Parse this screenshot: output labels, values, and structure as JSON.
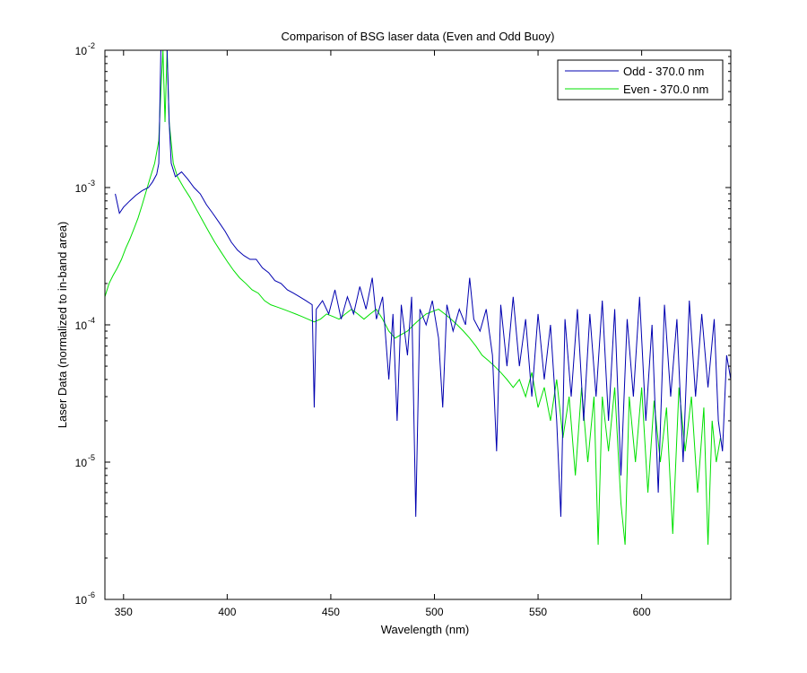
{
  "chart_data": {
    "type": "line",
    "title": "Comparison of BSG laser data (Even and Odd Buoy)",
    "xlabel": "Wavelength (nm)",
    "ylabel": "Laser Data (normalized to in-band area)",
    "xlim": [
      341,
      643
    ],
    "ylim": [
      1e-06,
      0.01
    ],
    "yscale": "log",
    "grid": false,
    "legend_position": "top-right",
    "x_ticks": [
      350,
      400,
      450,
      500,
      550,
      600
    ],
    "x_tick_labels": [
      "350",
      "400",
      "450",
      "500",
      "550",
      "600"
    ],
    "y_ticks": [
      {
        "value": 0.01,
        "base": "10",
        "exp": "-2"
      },
      {
        "value": 0.001,
        "base": "10",
        "exp": "-3"
      },
      {
        "value": 0.0001,
        "base": "10",
        "exp": "-4"
      },
      {
        "value": 1e-05,
        "base": "10",
        "exp": "-5"
      },
      {
        "value": 1e-06,
        "base": "10",
        "exp": "-6"
      }
    ],
    "series": [
      {
        "name": "Odd - 370.0 nm",
        "color": "#0000b0",
        "points": [
          [
            346,
            0.0009
          ],
          [
            348,
            0.00065
          ],
          [
            350,
            0.00072
          ],
          [
            353,
            0.0008
          ],
          [
            356,
            0.00088
          ],
          [
            359,
            0.00095
          ],
          [
            362,
            0.001
          ],
          [
            364,
            0.0011
          ],
          [
            366,
            0.00125
          ],
          [
            367,
            0.0015
          ],
          [
            368,
            0.01
          ],
          [
            370,
            0.01
          ],
          [
            371,
            0.01
          ],
          [
            372,
            0.003
          ],
          [
            373,
            0.0015
          ],
          [
            375,
            0.0012
          ],
          [
            378,
            0.0013
          ],
          [
            381,
            0.00115
          ],
          [
            384,
            0.001
          ],
          [
            387,
            0.0009
          ],
          [
            390,
            0.00075
          ],
          [
            393,
            0.00065
          ],
          [
            396,
            0.00056
          ],
          [
            399,
            0.00048
          ],
          [
            402,
            0.0004
          ],
          [
            405,
            0.00035
          ],
          [
            408,
            0.00032
          ],
          [
            411,
            0.0003
          ],
          [
            414,
            0.0003
          ],
          [
            417,
            0.00026
          ],
          [
            420,
            0.00024
          ],
          [
            423,
            0.00021
          ],
          [
            426,
            0.0002
          ],
          [
            429,
            0.00018
          ],
          [
            432,
            0.00017
          ],
          [
            435,
            0.00016
          ],
          [
            438,
            0.00015
          ],
          [
            441,
            0.00014
          ],
          [
            442,
            2.5e-05
          ],
          [
            443,
            0.00013
          ],
          [
            446,
            0.00015
          ],
          [
            449,
            0.00012
          ],
          [
            452,
            0.00018
          ],
          [
            455,
            0.00011
          ],
          [
            458,
            0.00016
          ],
          [
            461,
            0.00012
          ],
          [
            464,
            0.00019
          ],
          [
            467,
            0.00013
          ],
          [
            470,
            0.00022
          ],
          [
            472,
            0.00011
          ],
          [
            475,
            0.00016
          ],
          [
            478,
            4e-05
          ],
          [
            480,
            0.00012
          ],
          [
            482,
            2e-05
          ],
          [
            484,
            0.00014
          ],
          [
            487,
            6e-05
          ],
          [
            489,
            0.00016
          ],
          [
            491,
            4e-06
          ],
          [
            493,
            0.00013
          ],
          [
            496,
            0.0001
          ],
          [
            499,
            0.00015
          ],
          [
            502,
            8e-05
          ],
          [
            504,
            2.5e-05
          ],
          [
            506,
            0.00014
          ],
          [
            509,
            9e-05
          ],
          [
            512,
            0.00013
          ],
          [
            515,
            0.0001
          ],
          [
            517,
            0.00022
          ],
          [
            519,
            0.00011
          ],
          [
            522,
            9e-05
          ],
          [
            525,
            0.00013
          ],
          [
            528,
            6e-05
          ],
          [
            530,
            1.2e-05
          ],
          [
            532,
            0.00014
          ],
          [
            535,
            5e-05
          ],
          [
            538,
            0.00016
          ],
          [
            541,
            5e-05
          ],
          [
            544,
            0.00011
          ],
          [
            547,
            3e-05
          ],
          [
            550,
            0.00012
          ],
          [
            553,
            4e-05
          ],
          [
            556,
            0.0001
          ],
          [
            559,
            2e-05
          ],
          [
            561,
            4e-06
          ],
          [
            563,
            0.00011
          ],
          [
            566,
            3e-05
          ],
          [
            569,
            0.00013
          ],
          [
            572,
            2e-05
          ],
          [
            575,
            0.00012
          ],
          [
            578,
            3e-05
          ],
          [
            581,
            0.00015
          ],
          [
            584,
            2e-05
          ],
          [
            587,
            0.00013
          ],
          [
            590,
            8e-06
          ],
          [
            593,
            0.00011
          ],
          [
            596,
            3e-05
          ],
          [
            599,
            0.00016
          ],
          [
            602,
            2e-05
          ],
          [
            605,
            0.0001
          ],
          [
            608,
            6e-06
          ],
          [
            611,
            0.00014
          ],
          [
            614,
            3e-05
          ],
          [
            617,
            0.00011
          ],
          [
            620,
            1e-05
          ],
          [
            623,
            0.00015
          ],
          [
            626,
            3e-05
          ],
          [
            629,
            0.00012
          ],
          [
            632,
            3.5e-05
          ],
          [
            635,
            0.00011
          ],
          [
            637,
            2e-05
          ],
          [
            639,
            1.2e-05
          ],
          [
            641,
            6e-05
          ],
          [
            643,
            4e-05
          ]
        ]
      },
      {
        "name": "Even - 370.0 nm",
        "color": "#00e000",
        "points": [
          [
            341,
            0.00016
          ],
          [
            343,
            0.0002
          ],
          [
            345,
            0.00023
          ],
          [
            347,
            0.00026
          ],
          [
            349,
            0.0003
          ],
          [
            351,
            0.00036
          ],
          [
            353,
            0.00042
          ],
          [
            355,
            0.0005
          ],
          [
            357,
            0.0006
          ],
          [
            359,
            0.00075
          ],
          [
            361,
            0.00095
          ],
          [
            363,
            0.0012
          ],
          [
            365,
            0.0015
          ],
          [
            367,
            0.0022
          ],
          [
            368,
            0.005
          ],
          [
            369,
            0.01
          ],
          [
            370,
            0.003
          ],
          [
            371,
            0.01
          ],
          [
            372,
            0.003
          ],
          [
            374,
            0.0015
          ],
          [
            376,
            0.0012
          ],
          [
            379,
            0.001
          ],
          [
            382,
            0.00085
          ],
          [
            385,
            0.0007
          ],
          [
            388,
            0.00058
          ],
          [
            391,
            0.00048
          ],
          [
            394,
            0.0004
          ],
          [
            397,
            0.00034
          ],
          [
            400,
            0.00029
          ],
          [
            403,
            0.00025
          ],
          [
            406,
            0.00022
          ],
          [
            409,
            0.0002
          ],
          [
            412,
            0.00018
          ],
          [
            415,
            0.00017
          ],
          [
            418,
            0.00015
          ],
          [
            421,
            0.00014
          ],
          [
            424,
            0.000135
          ],
          [
            427,
            0.00013
          ],
          [
            430,
            0.000125
          ],
          [
            433,
            0.00012
          ],
          [
            436,
            0.000115
          ],
          [
            439,
            0.00011
          ],
          [
            442,
            0.000105
          ],
          [
            445,
            0.00011
          ],
          [
            448,
            0.00012
          ],
          [
            451,
            0.000115
          ],
          [
            454,
            0.00011
          ],
          [
            457,
            0.00012
          ],
          [
            460,
            0.00013
          ],
          [
            463,
            0.00012
          ],
          [
            466,
            0.00011
          ],
          [
            469,
            0.00012
          ],
          [
            472,
            0.00013
          ],
          [
            475,
            0.00011
          ],
          [
            478,
            9e-05
          ],
          [
            481,
            8e-05
          ],
          [
            484,
            8.5e-05
          ],
          [
            487,
            9e-05
          ],
          [
            490,
            0.0001
          ],
          [
            493,
            0.00011
          ],
          [
            496,
            0.00012
          ],
          [
            499,
            0.000125
          ],
          [
            502,
            0.00013
          ],
          [
            505,
            0.00012
          ],
          [
            508,
            0.00011
          ],
          [
            511,
            0.0001
          ],
          [
            514,
            9e-05
          ],
          [
            517,
            8e-05
          ],
          [
            520,
            7e-05
          ],
          [
            523,
            6e-05
          ],
          [
            526,
            5.5e-05
          ],
          [
            529,
            5e-05
          ],
          [
            532,
            4.5e-05
          ],
          [
            535,
            4e-05
          ],
          [
            538,
            3.5e-05
          ],
          [
            541,
            4e-05
          ],
          [
            544,
            3e-05
          ],
          [
            547,
            4.5e-05
          ],
          [
            550,
            2.5e-05
          ],
          [
            553,
            3.5e-05
          ],
          [
            556,
            2e-05
          ],
          [
            559,
            4e-05
          ],
          [
            562,
            1.5e-05
          ],
          [
            565,
            3e-05
          ],
          [
            568,
            8e-06
          ],
          [
            571,
            3.5e-05
          ],
          [
            574,
            1e-05
          ],
          [
            577,
            3e-05
          ],
          [
            579,
            2.5e-06
          ],
          [
            581,
            3e-05
          ],
          [
            584,
            1.2e-05
          ],
          [
            587,
            3.5e-05
          ],
          [
            590,
            5e-06
          ],
          [
            592,
            2.5e-06
          ],
          [
            594,
            3e-05
          ],
          [
            597,
            1e-05
          ],
          [
            600,
            3.5e-05
          ],
          [
            603,
            6e-06
          ],
          [
            606,
            2.8e-05
          ],
          [
            609,
            1e-05
          ],
          [
            612,
            2.5e-05
          ],
          [
            615,
            3e-06
          ],
          [
            618,
            3.5e-05
          ],
          [
            621,
            1.2e-05
          ],
          [
            624,
            3e-05
          ],
          [
            627,
            6e-06
          ],
          [
            630,
            2.5e-05
          ],
          [
            632,
            2.5e-06
          ],
          [
            634,
            2e-05
          ],
          [
            636,
            1e-05
          ],
          [
            638,
            1.5e-05
          ]
        ]
      }
    ]
  }
}
